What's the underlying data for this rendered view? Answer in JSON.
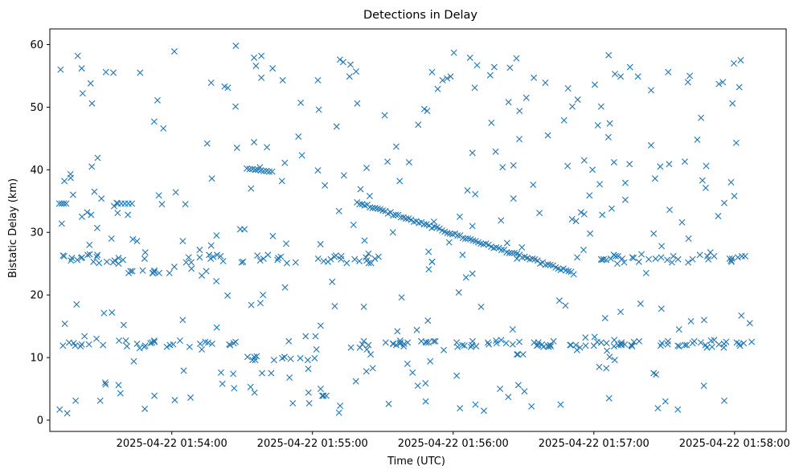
{
  "chart_data": {
    "type": "scatter",
    "title": "Detections in Delay",
    "xlabel": "Time (UTC)",
    "ylabel": "Bistatic Delay (km)",
    "x_unit": "seconds after 2025-04-22 01:53:00",
    "xlim": [
      8.0,
      322.0
    ],
    "ylim": [
      -1.8,
      62.5
    ],
    "xticks": [
      {
        "value": 60,
        "label": "2025-04-22 01:54:00"
      },
      {
        "value": 120,
        "label": "2025-04-22 01:55:00"
      },
      {
        "value": 180,
        "label": "2025-04-22 01:56:00"
      },
      {
        "value": 240,
        "label": "2025-04-22 01:57:00"
      },
      {
        "value": 300,
        "label": "2025-04-22 01:58:00"
      }
    ],
    "yticks": [
      0,
      10,
      20,
      30,
      40,
      50,
      60
    ],
    "marker": "x",
    "color": "#1f77b4",
    "series": [
      {
        "name": "detections",
        "trend_segments": [],
        "points": [],
        "scatter_points": []
      }
    ]
  }
}
